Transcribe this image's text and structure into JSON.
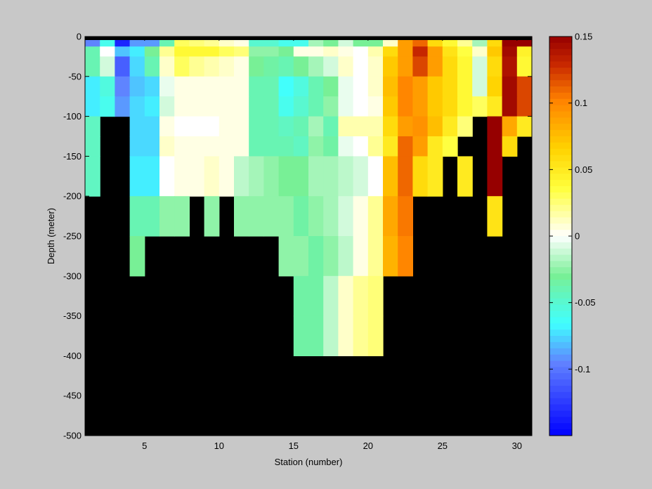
{
  "chart_data": {
    "type": "heatmap",
    "title": "",
    "xlabel": "Station (number)",
    "ylabel": "Depth (meter)",
    "xlim": [
      1,
      31
    ],
    "ylim": [
      -500,
      0
    ],
    "xticks": [
      5,
      10,
      15,
      20,
      25,
      30
    ],
    "yticks": [
      0,
      -50,
      -100,
      -150,
      -200,
      -250,
      -300,
      -350,
      -400,
      -450,
      -500
    ],
    "colorbar": {
      "clim": [
        -0.15,
        0.15
      ],
      "ticks": [
        -0.1,
        -0.05,
        0,
        0.05,
        0.1,
        0.15
      ],
      "tick_labels": [
        "-0.1",
        "-0.05",
        "0",
        "0.05",
        "0.1",
        "0.15"
      ],
      "colormap": "jet-white-center"
    },
    "mask_color": "#000000",
    "depth_rows_top": [
      0,
      -5,
      -12.5,
      -25,
      -50,
      -75,
      -100,
      -125,
      -150,
      -200,
      -250,
      -300,
      -350,
      -400
    ],
    "depth_rows_bottom": [
      -5,
      -12.5,
      -25,
      -50,
      -75,
      -100,
      -125,
      -150,
      -200,
      -250,
      -300,
      -350,
      -400,
      -500
    ],
    "stations": [
      1,
      2,
      3,
      4,
      5,
      6,
      7,
      8,
      9,
      10,
      11,
      12,
      13,
      14,
      15,
      16,
      17,
      18,
      19,
      20,
      21,
      22,
      23,
      24,
      25,
      26,
      27,
      28,
      29,
      30
    ],
    "values": [
      [
        -0.095,
        -0.06,
        -0.135,
        -0.09,
        -0.09,
        -0.04,
        0.03,
        0.025,
        0.02,
        0.01,
        0.005,
        -0.05,
        -0.05,
        -0.06,
        -0.06,
        -0.02,
        -0.03,
        -0.01,
        -0.03,
        -0.03,
        0.01,
        0.09,
        0.11,
        0.06,
        0.04,
        0.02,
        -0.02,
        0.06,
        0.15,
        0.15
      ],
      [
        -0.095,
        -0.06,
        -0.135,
        -0.09,
        -0.09,
        -0.04,
        0.03,
        0.025,
        0.02,
        0.01,
        0.005,
        -0.05,
        -0.05,
        -0.06,
        -0.06,
        -0.02,
        -0.03,
        -0.01,
        -0.03,
        -0.03,
        0.01,
        0.09,
        0.11,
        0.06,
        0.04,
        0.02,
        -0.02,
        0.06,
        0.15,
        0.15
      ],
      [
        -0.04,
        0.0,
        -0.08,
        -0.07,
        -0.03,
        0.02,
        0.04,
        0.04,
        0.04,
        0.03,
        0.025,
        -0.025,
        -0.025,
        -0.03,
        0.005,
        0.005,
        0.01,
        0.005,
        0.0,
        0.015,
        0.06,
        0.09,
        0.13,
        0.09,
        0.055,
        0.035,
        0.01,
        0.07,
        0.145,
        0.045
      ],
      [
        -0.04,
        -0.01,
        -0.11,
        -0.075,
        -0.04,
        0.01,
        0.03,
        0.02,
        0.015,
        0.01,
        0.005,
        -0.03,
        -0.035,
        -0.04,
        -0.03,
        -0.02,
        -0.01,
        0.01,
        0.0,
        0.01,
        0.07,
        0.09,
        0.12,
        0.09,
        0.06,
        0.04,
        -0.01,
        0.06,
        0.14,
        0.04
      ],
      [
        -0.07,
        -0.055,
        -0.095,
        -0.08,
        -0.075,
        -0.005,
        0.005,
        0.005,
        0.005,
        0.005,
        0.005,
        -0.04,
        -0.04,
        -0.065,
        -0.055,
        -0.04,
        -0.03,
        -0.005,
        0.0,
        0.01,
        0.075,
        0.1,
        0.09,
        0.07,
        0.06,
        0.04,
        -0.01,
        0.065,
        0.145,
        0.12
      ],
      [
        -0.07,
        -0.06,
        -0.09,
        -0.075,
        -0.07,
        -0.01,
        0.005,
        0.005,
        0.005,
        0.005,
        0.005,
        -0.04,
        -0.04,
        -0.06,
        -0.05,
        -0.04,
        -0.025,
        -0.005,
        0.0,
        0.005,
        0.07,
        0.1,
        0.09,
        0.07,
        0.06,
        0.04,
        0.03,
        0.05,
        0.145,
        0.12
      ],
      [
        -0.045,
        null,
        null,
        -0.075,
        -0.075,
        0.005,
        0.0,
        0.0,
        0.0,
        0.005,
        0.005,
        -0.04,
        -0.04,
        -0.045,
        -0.04,
        -0.02,
        -0.04,
        0.015,
        0.015,
        0.015,
        0.06,
        0.09,
        0.095,
        0.075,
        0.05,
        0.025,
        null,
        0.15,
        0.085,
        0.05
      ],
      [
        -0.045,
        null,
        null,
        -0.075,
        -0.075,
        0.01,
        0.005,
        0.005,
        0.005,
        0.005,
        0.005,
        -0.04,
        -0.04,
        -0.04,
        -0.045,
        -0.025,
        -0.035,
        -0.005,
        0.0,
        0.02,
        0.05,
        0.11,
        0.09,
        0.05,
        0.035,
        null,
        null,
        0.15,
        0.06,
        null
      ],
      [
        -0.045,
        null,
        null,
        -0.07,
        -0.07,
        0.0,
        0.005,
        0.005,
        0.01,
        0.005,
        -0.015,
        -0.02,
        -0.025,
        -0.03,
        -0.03,
        -0.02,
        -0.02,
        -0.015,
        -0.01,
        0.0,
        0.075,
        0.11,
        0.06,
        0.05,
        null,
        0.05,
        null,
        0.15,
        null,
        null
      ],
      [
        null,
        null,
        null,
        -0.04,
        -0.04,
        -0.025,
        -0.025,
        null,
        -0.025,
        null,
        -0.025,
        -0.025,
        -0.025,
        -0.025,
        -0.035,
        -0.025,
        -0.02,
        -0.01,
        0.005,
        0.02,
        0.085,
        0.105,
        null,
        null,
        null,
        null,
        null,
        0.055,
        null,
        null
      ],
      [
        null,
        null,
        null,
        -0.03,
        null,
        null,
        null,
        null,
        null,
        null,
        null,
        null,
        null,
        -0.025,
        -0.025,
        -0.035,
        -0.025,
        -0.015,
        0.005,
        0.02,
        0.08,
        0.1,
        null,
        null,
        null,
        null,
        null,
        null,
        null,
        null
      ],
      [
        null,
        null,
        null,
        null,
        null,
        null,
        null,
        null,
        null,
        null,
        null,
        null,
        null,
        null,
        -0.035,
        -0.035,
        -0.015,
        0.01,
        0.02,
        0.025,
        null,
        null,
        null,
        null,
        null,
        null,
        null,
        null,
        null,
        null
      ],
      [
        null,
        null,
        null,
        null,
        null,
        null,
        null,
        null,
        null,
        null,
        null,
        null,
        null,
        null,
        -0.035,
        -0.035,
        -0.015,
        0.01,
        0.02,
        0.025,
        null,
        null,
        null,
        null,
        null,
        null,
        null,
        null,
        null,
        null
      ],
      [
        null,
        null,
        null,
        null,
        null,
        null,
        null,
        null,
        null,
        null,
        null,
        null,
        null,
        null,
        null,
        null,
        null,
        null,
        null,
        null,
        null,
        null,
        null,
        null,
        null,
        null,
        null,
        null,
        null,
        null
      ]
    ]
  }
}
